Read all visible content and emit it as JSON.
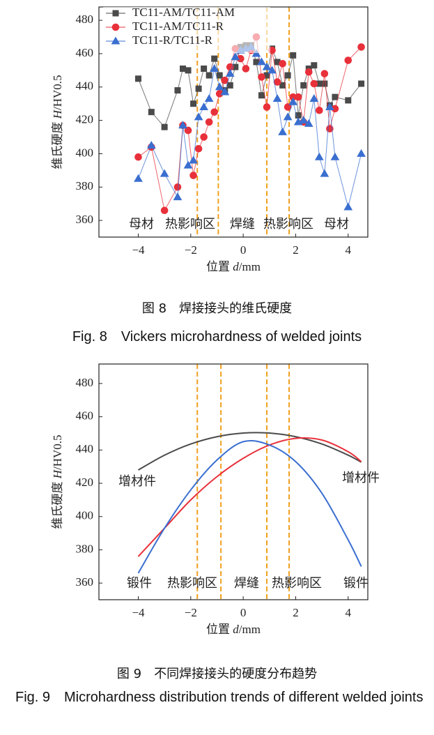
{
  "chart_data": [
    {
      "type": "scatter-line",
      "x": [
        -4,
        -3.5,
        -3,
        -2.5,
        -2.3,
        -2.1,
        -1.9,
        -1.7,
        -1.5,
        -1.3,
        -1.1,
        -0.9,
        -0.7,
        -0.5,
        -0.3,
        -0.1,
        0.1,
        0.3,
        0.5,
        0.7,
        0.9,
        1.1,
        1.3,
        1.5,
        1.7,
        1.9,
        2.1,
        2.3,
        2.5,
        2.7,
        2.9,
        3.1,
        3.3,
        3.5,
        4,
        4.5
      ],
      "series": [
        {
          "name": "TC11-AM/TC11-AM",
          "color": "#4a4a4a",
          "marker": "square",
          "values": [
            445,
            425,
            416,
            438,
            451,
            450,
            430,
            439,
            451,
            447,
            457,
            447,
            438,
            441,
            452,
            464,
            465,
            465,
            455,
            435,
            447,
            463,
            455,
            441,
            447,
            459,
            423,
            441,
            451,
            453,
            442,
            442,
            429,
            434,
            432,
            442
          ]
        },
        {
          "name": "TC11-AM/TC11-R",
          "color": "#e8303a",
          "marker": "circle",
          "values": [
            398,
            404,
            366,
            380,
            417,
            414,
            387,
            403,
            410,
            419,
            425,
            436,
            444,
            452,
            463,
            457,
            451,
            462,
            470,
            446,
            428,
            462,
            443,
            454,
            428,
            434,
            434,
            419,
            449,
            442,
            426,
            448,
            415,
            427,
            456,
            464
          ]
        },
        {
          "name": "TC11-R/TC11-R",
          "color": "#3a6fd0",
          "marker": "triangle",
          "values": [
            385,
            405,
            388,
            374,
            417,
            393,
            396,
            422,
            428,
            433,
            451,
            440,
            437,
            448,
            458,
            462,
            463,
            464,
            460,
            455,
            452,
            450,
            433,
            413,
            422,
            431,
            419,
            420,
            418,
            433,
            398,
            388,
            428,
            398,
            368,
            400
          ]
        }
      ],
      "xlim": [
        -5.5,
        4.75
      ],
      "ylim": [
        350,
        488
      ],
      "xticks": [
        -4,
        -2,
        0,
        2,
        4
      ],
      "yticks": [
        360,
        380,
        400,
        420,
        440,
        460,
        480
      ],
      "xlabel": [
        "位置 ",
        "d",
        "/mm"
      ],
      "ylabel": [
        "维氏硬度 ",
        "H",
        "/HV0.5"
      ],
      "vlines": [
        -1.75,
        -0.95,
        0.9,
        1.75
      ],
      "vline_color": "#f0a020",
      "region_labels": [
        "母材",
        "热影响区",
        "焊缝",
        "热影响区",
        "母材"
      ],
      "legend": "upper left",
      "caption": "图 8　焊接接头的维氏硬度",
      "caption_en": "Fig. 8　Vickers microhardness of welded joints"
    },
    {
      "type": "line",
      "x": [
        -4,
        -3,
        -2,
        -1,
        0,
        1,
        2,
        3,
        4,
        4.5
      ],
      "series": [
        {
          "color": "#4a4a4a",
          "values": [
            428,
            436.9,
            443.6,
            448,
            450.2,
            450.2,
            448,
            443.6,
            436.9,
            432.7
          ]
        },
        {
          "color": "#e8303a",
          "values": [
            376,
            393,
            410,
            424,
            435,
            443,
            447,
            446,
            439,
            433
          ]
        },
        {
          "color": "#3a6fd0",
          "values": [
            366,
            393,
            416,
            434,
            445,
            443,
            433,
            414,
            386,
            370
          ]
        }
      ],
      "xlim": [
        -5.5,
        4.75
      ],
      "ylim": [
        350,
        491.7
      ],
      "xticks": [
        -4,
        -2,
        0,
        2,
        4
      ],
      "yticks": [
        360,
        380,
        400,
        420,
        440,
        460,
        480
      ],
      "xlabel": [
        "位置 ",
        "d",
        "/mm"
      ],
      "ylabel": [
        "维氏硬度 ",
        "H",
        "/HV0.5"
      ],
      "vlines": [
        -1.75,
        -0.85,
        0.9,
        1.75
      ],
      "vline_color": "#f0a020",
      "region_labels": [
        "锻件",
        "热影响区",
        "焊缝",
        "热影响区",
        "锻件"
      ],
      "side_labels": [
        "增材件",
        "增材件"
      ],
      "caption": "图 9　不同焊接接头的硬度分布趋势",
      "caption_en": "Fig. 9　Microhardness distribution trends of different welded joints"
    }
  ]
}
